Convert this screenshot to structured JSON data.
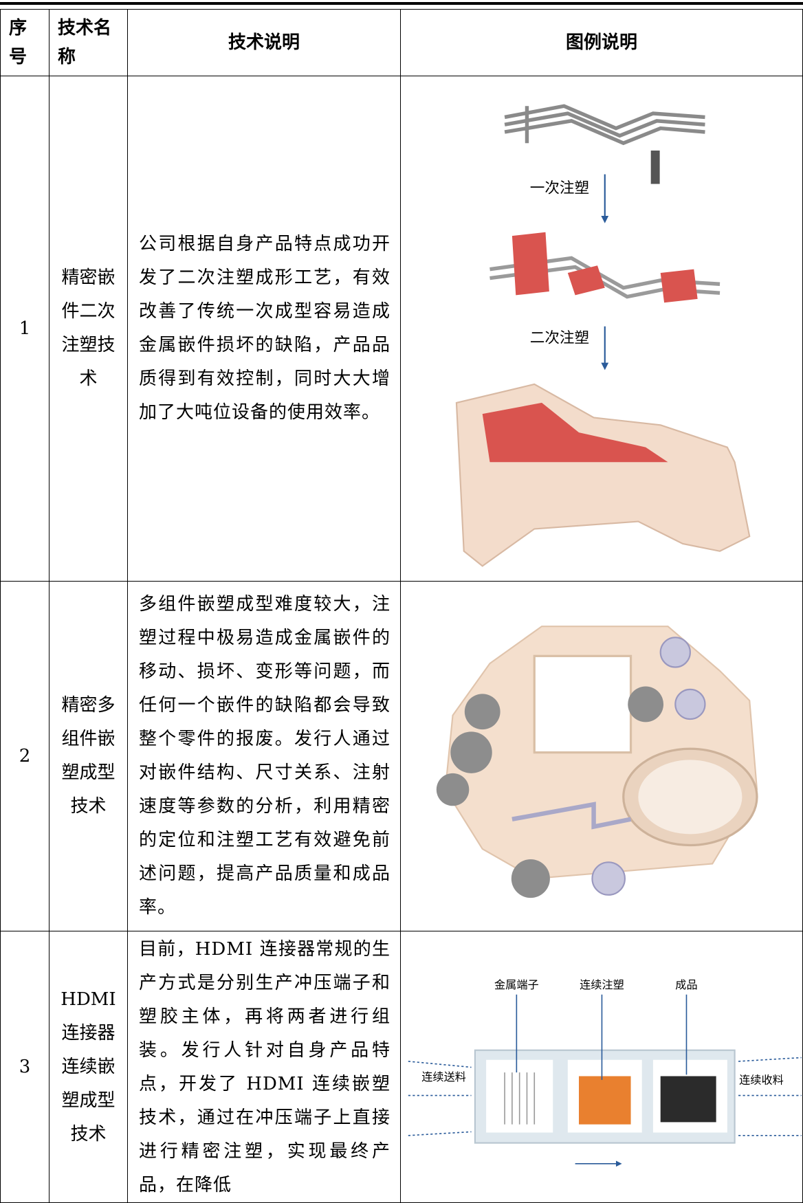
{
  "table": {
    "headers": [
      "序号",
      "技术名称",
      "技术说明",
      "图例说明"
    ],
    "rows": [
      {
        "index": 1,
        "name": "精密嵌件二次注塑技术",
        "description": "公司根据自身产品特点成功开发了二次注塑成形工艺，有效改善了传统一次成型容易造成金属嵌件损坏的缺陷，产品品质得到有效控制，同时大大增加了大吨位设备的使用效率。",
        "figure_labels": [
          "一次注塑",
          "二次注塑"
        ]
      },
      {
        "index": 2,
        "name": "精密多组件嵌塑成型技术",
        "description": "多组件嵌塑成型难度较大，注塑过程中极易造成金属嵌件的移动、损坏、变形等问题，而任何一个嵌件的缺陷都会导致整个零件的报废。发行人通过对嵌件结构、尺寸关系、注射速度等参数的分析，利用精密的定位和注塑工艺有效避免前述问题，提高产品质量和成品率。"
      },
      {
        "index": 3,
        "name": "HDMI连接器连续嵌塑成型技术",
        "description": "目前，HDMI 连接器常规的生产方式是分别生产冲压端子和塑胶主体，再将两者进行组装。发行人针对自身产品特点，开发了 HDMI 连续嵌塑技术，通过在冲压端子上直接进行精密注塑，实现最终产品，在降低",
        "figure_labels": [
          "金属端子",
          "连续注塑",
          "成品",
          "连续送料",
          "连续收料"
        ]
      }
    ]
  }
}
